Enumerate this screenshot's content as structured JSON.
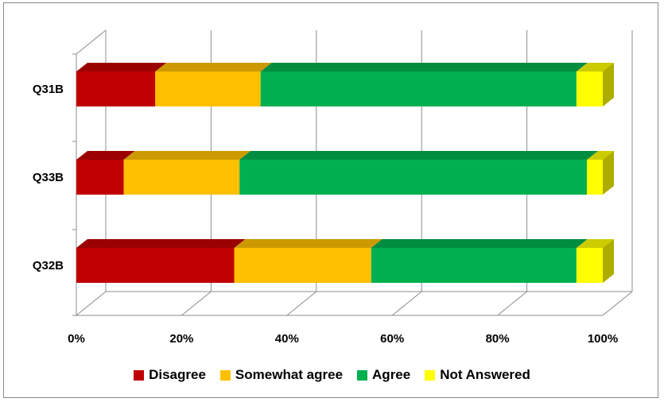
{
  "chart_data": {
    "type": "bar",
    "orientation": "horizontal",
    "stacked": "percent",
    "style": "3d",
    "categories": [
      "Q31B",
      "Q33B",
      "Q32B"
    ],
    "series": [
      {
        "name": "Disagree",
        "color": "#C00000",
        "values": [
          15,
          9,
          30
        ]
      },
      {
        "name": "Somewhat agree",
        "color": "#FFC000",
        "values": [
          20,
          22,
          26
        ]
      },
      {
        "name": "Agree",
        "color": "#00B050",
        "values": [
          60,
          66,
          39
        ]
      },
      {
        "name": "Not Answered",
        "color": "#FFFF00",
        "values": [
          5,
          3,
          5
        ]
      }
    ],
    "xlim": [
      0,
      100
    ],
    "xticks": [
      "0%",
      "20%",
      "40%",
      "60%",
      "80%",
      "100%"
    ],
    "grid": true,
    "legend_position": "bottom"
  }
}
